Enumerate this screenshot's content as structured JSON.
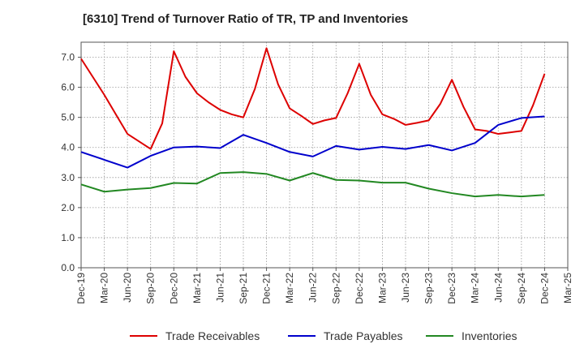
{
  "chart_data": {
    "type": "line",
    "title": "[6310]  Trend of Turnover Ratio of TR, TP and Inventories",
    "xlabel": "",
    "ylabel": "",
    "ylim": [
      0,
      7.5
    ],
    "yticks": [
      "0.0",
      "1.0",
      "2.0",
      "3.0",
      "4.0",
      "5.0",
      "6.0",
      "7.0"
    ],
    "xticks": [
      "Dec-19",
      "Mar-20",
      "Jun-20",
      "Sep-20",
      "Dec-20",
      "Mar-21",
      "Jun-21",
      "Sep-21",
      "Dec-21",
      "Mar-22",
      "Jun-22",
      "Sep-22",
      "Dec-22",
      "Mar-23",
      "Jun-23",
      "Sep-23",
      "Dec-23",
      "Mar-24",
      "Jun-24",
      "Sep-24",
      "Dec-24",
      "Mar-25"
    ],
    "grid": "dotted",
    "legend_position": "bottom",
    "series": [
      {
        "name": "Trade Receivables",
        "color": "#dd0000",
        "values": [
          6.95,
          6.35,
          5.75,
          5.1,
          4.45,
          4.2,
          3.95,
          4.8,
          7.2,
          6.35,
          5.8,
          5.5,
          5.25,
          5.1,
          5.0,
          5.95,
          7.3,
          6.1,
          5.3,
          5.05,
          4.78,
          4.9,
          4.98,
          5.8,
          6.78,
          5.75,
          5.1,
          4.95,
          4.75,
          4.82,
          4.9,
          5.45,
          6.25,
          5.35,
          4.6,
          4.55,
          4.45,
          4.5,
          4.55,
          5.4,
          6.45
        ]
      },
      {
        "name": "Trade Payables",
        "color": "#0000cc",
        "values": [
          3.85,
          null,
          null,
          null,
          3.33,
          null,
          3.72,
          null,
          4.0,
          null,
          4.03,
          null,
          3.98,
          null,
          4.42,
          null,
          4.15,
          null,
          3.85,
          null,
          3.7,
          null,
          4.05,
          null,
          3.93,
          null,
          4.02,
          null,
          3.95,
          null,
          4.08,
          null,
          3.9,
          null,
          4.15,
          null,
          4.75,
          null,
          4.98,
          null,
          5.03
        ]
      },
      {
        "name": "Inventories",
        "color": "#228822",
        "values": [
          2.77,
          null,
          2.53,
          null,
          2.6,
          null,
          2.65,
          null,
          2.82,
          null,
          2.8,
          null,
          3.15,
          null,
          3.18,
          null,
          3.12,
          null,
          2.9,
          null,
          3.15,
          null,
          2.92,
          null,
          2.9,
          null,
          2.83,
          null,
          2.83,
          null,
          2.63,
          null,
          2.48,
          null,
          2.37,
          null,
          2.42,
          null,
          2.37,
          null,
          2.42
        ]
      }
    ]
  }
}
